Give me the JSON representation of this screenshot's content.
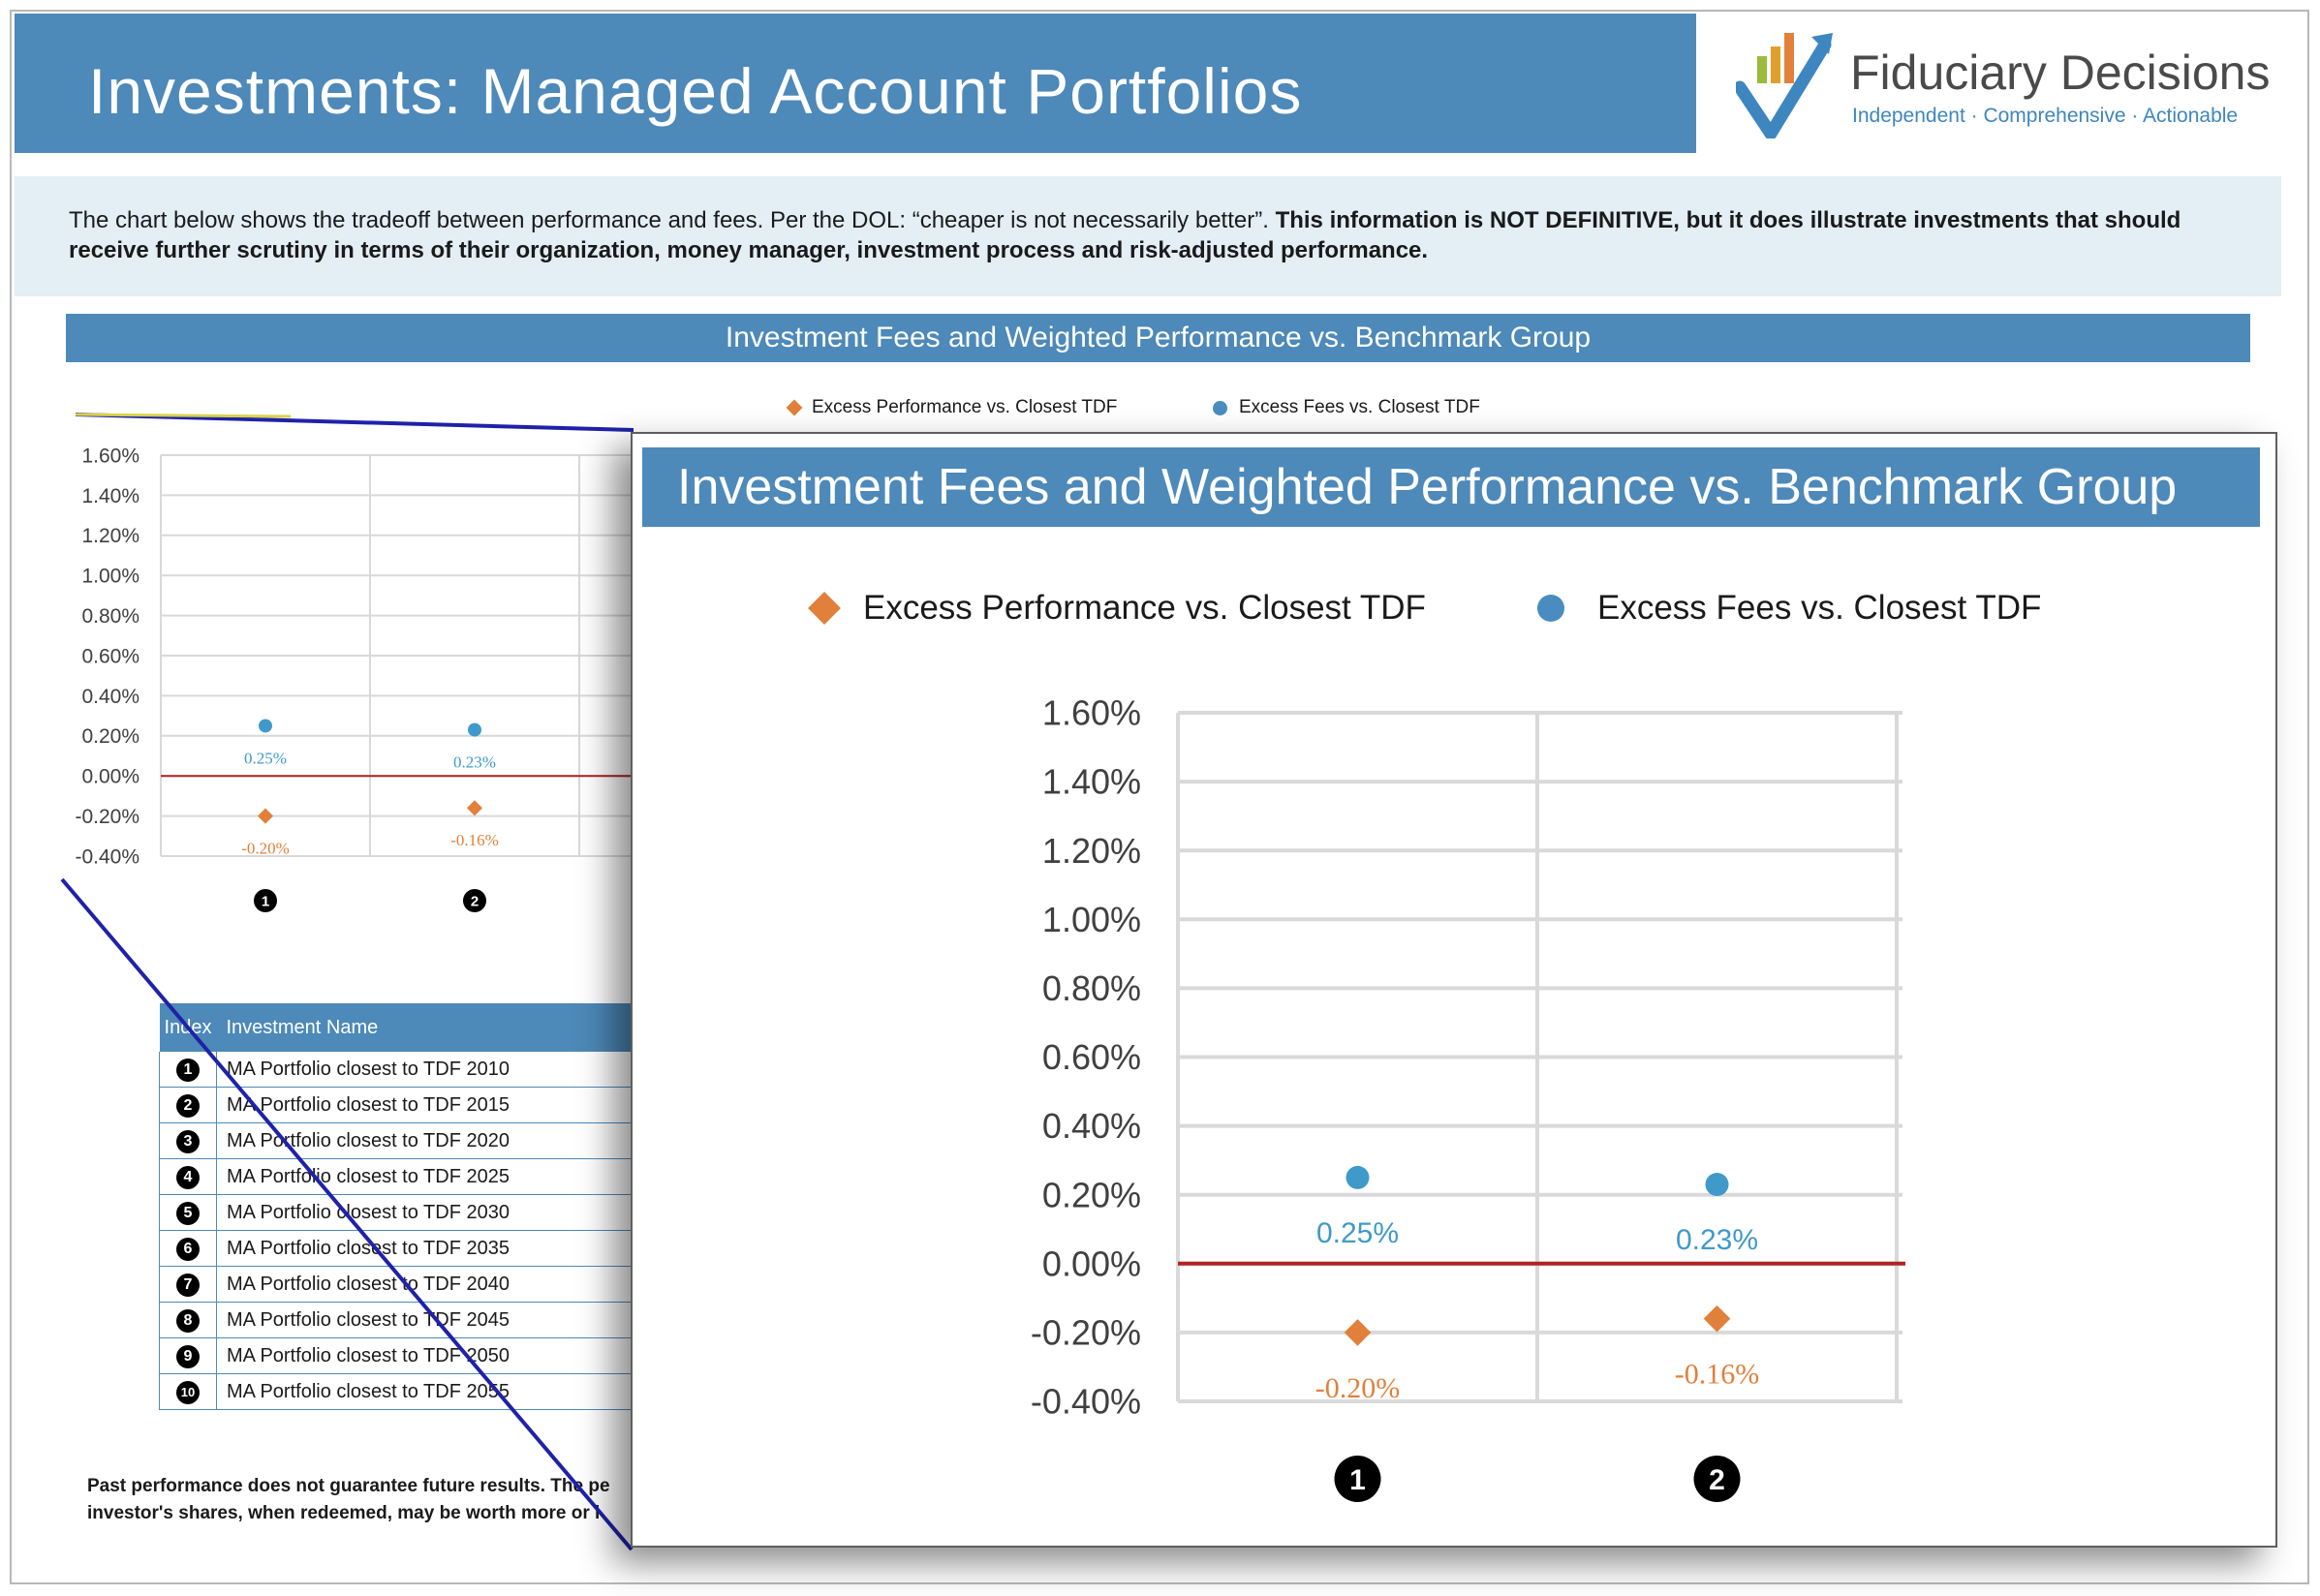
{
  "header": {
    "title": "Investments: Managed Account Portfolios",
    "logo_name": "Fiduciary Decisions",
    "logo_tagline": "Independent · Comprehensive · Actionable"
  },
  "intro": {
    "text": "The chart below shows the tradeoff between performance and fees.  Per the DOL: “cheaper is not necessarily better”. ",
    "bold_text": "This information is NOT DEFINITIVE, but it does illustrate investments that should receive further scrutiny in terms of their organization, money manager, investment process and risk-adjusted performance."
  },
  "chart_data": {
    "type": "scatter",
    "title": "Investment Fees and Weighted Performance vs. Benchmark Group",
    "categories": [
      "1",
      "2"
    ],
    "series": [
      {
        "name": "Excess Performance vs. Closest TDF",
        "values": [
          -0.2,
          -0.16
        ],
        "labels": [
          "-0.20%",
          "-0.16%"
        ],
        "color": "#e1803a",
        "marker": "diamond"
      },
      {
        "name": "Excess Fees vs. Closest TDF",
        "values": [
          0.25,
          0.23
        ],
        "labels": [
          "0.25%",
          "0.23%"
        ],
        "color": "#4a8cbf",
        "marker": "circle"
      }
    ],
    "yticks": [
      "1.60%",
      "1.40%",
      "1.20%",
      "1.00%",
      "0.80%",
      "0.60%",
      "0.40%",
      "0.20%",
      "0.00%",
      "-0.20%",
      "-0.40%"
    ],
    "ylim": [
      -0.4,
      1.6
    ],
    "zero_line_color": "#b22222",
    "grid": true,
    "legend_position": "top"
  },
  "table": {
    "headers": [
      "Index",
      "Investment Name"
    ],
    "rows": [
      {
        "index": "1",
        "name": "MA Portfolio closest to TDF 2010"
      },
      {
        "index": "2",
        "name": "MA Portfolio closest to TDF 2015"
      },
      {
        "index": "3",
        "name": "MA Portfolio closest to TDF 2020"
      },
      {
        "index": "4",
        "name": "MA Portfolio closest to TDF 2025"
      },
      {
        "index": "5",
        "name": "MA Portfolio closest to TDF 2030"
      },
      {
        "index": "6",
        "name": "MA Portfolio closest to TDF 2035"
      },
      {
        "index": "7",
        "name": "MA Portfolio closest to TDF 2040"
      },
      {
        "index": "8",
        "name": "MA Portfolio closest to TDF 2045"
      },
      {
        "index": "9",
        "name": "MA Portfolio closest to TDF 2050"
      },
      {
        "index": "10",
        "name": "MA Portfolio closest to TDF 2055"
      }
    ]
  },
  "footnote": {
    "line1": "Past performance does not guarantee future results. The pe",
    "line2": "investor's shares, when redeemed, may be worth more or l"
  }
}
